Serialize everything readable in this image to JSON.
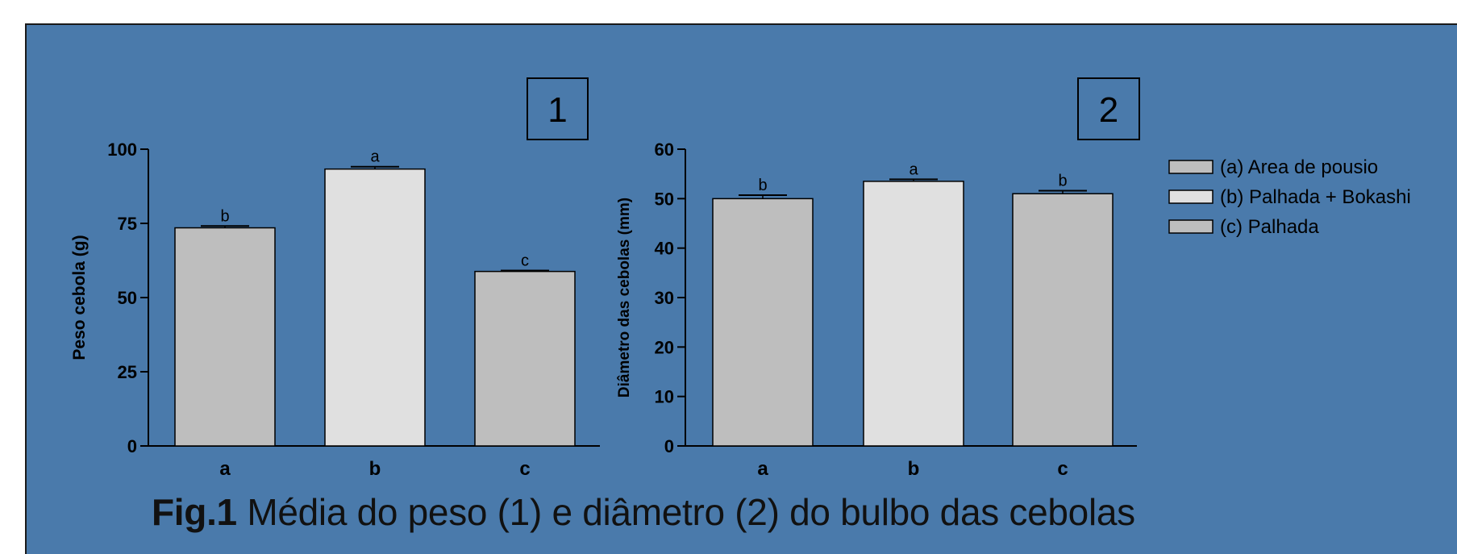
{
  "colors": {
    "background": "#4a7aab",
    "bar_a": "#bebebe",
    "bar_b": "#e0e0e0",
    "bar_c": "#bebebe",
    "axis": "#000000"
  },
  "caption": {
    "prefix": "Fig.1",
    "text": " Média do peso (1) e diâmetro (2)  do bulbo das cebolas"
  },
  "legend": {
    "placement": "right",
    "entries": [
      {
        "label": "(a) Area de pousio",
        "color": "#bebebe"
      },
      {
        "label": "(b) Palhada + Bokashi",
        "color": "#e0e0e0"
      },
      {
        "label": "(c) Palhada",
        "color": "#bebebe"
      }
    ]
  },
  "chart_data": [
    {
      "type": "bar",
      "panel_label": "1",
      "ylabel": "Peso cebola (g)",
      "xlabel": "",
      "categories": [
        "a",
        "b",
        "c"
      ],
      "values": [
        73.5,
        93.3,
        58.8
      ],
      "errors": [
        0.6,
        0.8,
        0.3
      ],
      "significance_letters": [
        "b",
        "a",
        "c"
      ],
      "ylim": [
        0,
        100
      ],
      "yticks": [
        0,
        25,
        50,
        75,
        100
      ],
      "grid": false
    },
    {
      "type": "bar",
      "panel_label": "2",
      "ylabel": "Diâmetro das cebolas (mm)",
      "xlabel": "",
      "categories": [
        "a",
        "b",
        "c"
      ],
      "values": [
        50.0,
        53.5,
        51.0
      ],
      "errors": [
        0.7,
        0.4,
        0.6
      ],
      "significance_letters": [
        "b",
        "a",
        "b"
      ],
      "ylim": [
        0,
        60
      ],
      "yticks": [
        0,
        10,
        20,
        30,
        40,
        50,
        60
      ],
      "grid": false
    }
  ]
}
